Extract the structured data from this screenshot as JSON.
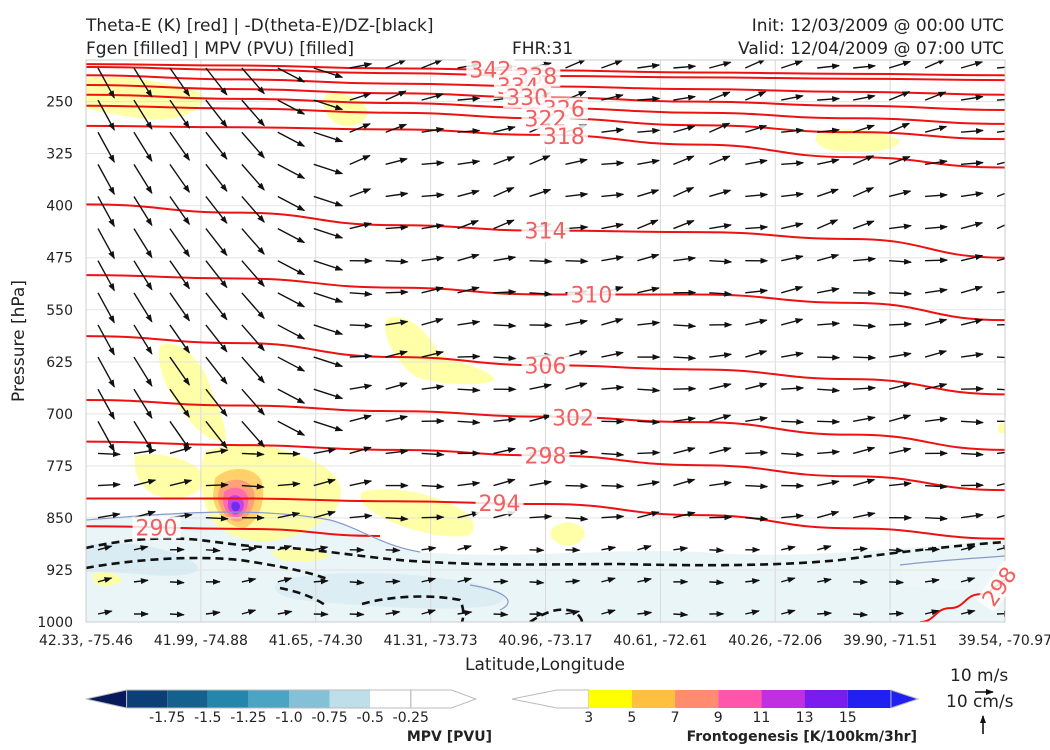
{
  "header": {
    "title_left_1": "Theta-E (K) [red] | -D(theta-E)/DZ-[black]",
    "title_left_2": "Fgen [filled] | MPV (PVU) [filled]",
    "fhr": "FHR:31",
    "init": "Init: 12/03/2009 @ 00:00 UTC",
    "valid": "Valid: 12/04/2009 @ 07:00 UTC"
  },
  "chart_data": {
    "type": "cross-section",
    "title": "Theta-E (K) [red] | -D(theta-E)/DZ-[black]",
    "subtitle": "Fgen [filled] | MPV (PVU) [filled]",
    "xlabel": "Latitude,Longitude",
    "ylabel": "Pressure [hPa]",
    "x_ticks": [
      "42.33, -75.46",
      "41.99, -74.88",
      "41.65, -74.30",
      "41.31, -73.73",
      "40.96, -73.17",
      "40.61, -72.61",
      "40.26, -72.06",
      "39.90, -71.51",
      "39.54, -70.97"
    ],
    "y_ticks": [
      250,
      325,
      400,
      475,
      550,
      625,
      700,
      775,
      850,
      925,
      1000
    ],
    "ylim": [
      1000,
      190
    ],
    "grid": true,
    "theta_e_contours": [
      {
        "label": "342",
        "y": [
          196,
          198,
          202,
          205,
          208,
          210,
          212
        ]
      },
      {
        "label": "338",
        "y": [
          200,
          204,
          209,
          213,
          215,
          217,
          219
        ]
      },
      {
        "label": "334",
        "y": [
          212,
          218,
          224,
          228,
          232,
          236,
          240
        ]
      },
      {
        "label": "330",
        "y": [
          226,
          232,
          238,
          244,
          250,
          256,
          262
        ]
      },
      {
        "label": "326",
        "y": [
          240,
          246,
          252,
          259,
          266,
          274,
          282
        ]
      },
      {
        "label": "322",
        "y": [
          256,
          260,
          266,
          274,
          284,
          294,
          304
        ]
      },
      {
        "label": "318",
        "y": [
          285,
          287,
          290,
          298,
          312,
          330,
          345
        ]
      },
      {
        "label": "314",
        "y": [
          398,
          410,
          428,
          436,
          438,
          448,
          475
        ]
      },
      {
        "label": "310",
        "y": [
          500,
          505,
          518,
          528,
          528,
          540,
          565
        ]
      },
      {
        "label": "306",
        "y": [
          588,
          598,
          618,
          630,
          636,
          650,
          672
        ]
      },
      {
        "label": "302",
        "y": [
          680,
          688,
          696,
          704,
          712,
          730,
          752
        ]
      },
      {
        "label": "298",
        "y": [
          740,
          745,
          752,
          760,
          774,
          790,
          810
        ]
      },
      {
        "label": "294",
        "y": [
          822,
          822,
          826,
          830,
          846,
          865,
          880
        ]
      },
      {
        "label": "290",
        "y": [
          862,
          866,
          876
        ]
      },
      {
        "label": "298",
        "y": [
          1000,
          980,
          960,
          945
        ]
      }
    ],
    "fgen_colorbar": {
      "title": "Frontogenesis [K/100km/3hr]",
      "ticks": [
        "3",
        "5",
        "7",
        "9",
        "11",
        "13",
        "15"
      ],
      "colors": [
        "#ffff00",
        "#ffc040",
        "#ff8c6e",
        "#ff55aa",
        "#c030e0",
        "#7a1cf0",
        "#2020f0"
      ]
    },
    "mpv_colorbar": {
      "title": "MPV [PVU]",
      "ticks": [
        "-1.75",
        "-1.5",
        "-1.25",
        "-1.0",
        "-0.75",
        "-0.5",
        "-0.25"
      ],
      "colors": [
        "#08195c",
        "#0c3f78",
        "#14608f",
        "#2486ad",
        "#4ba4c4",
        "#84c0d6",
        "#bedeea",
        "#ffffff"
      ]
    },
    "wind_reference": {
      "horizontal": "10 m/s",
      "vertical": "10 cm/s"
    }
  }
}
